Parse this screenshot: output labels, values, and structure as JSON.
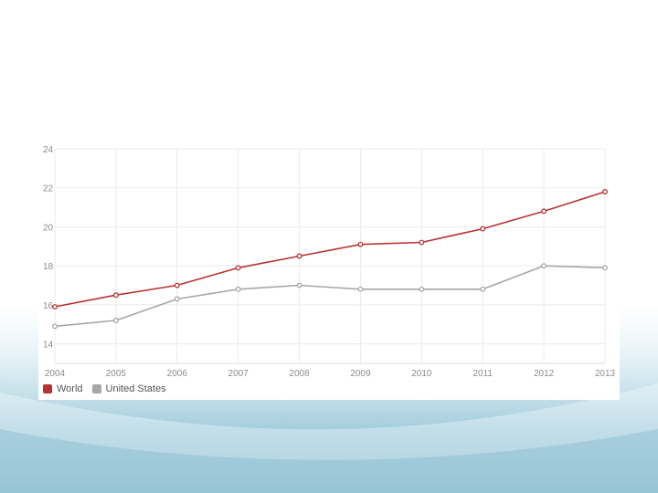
{
  "colors": {
    "world": "#b83232",
    "united_states": "#a6a6a6",
    "grid": "#ebebeb"
  },
  "chart_data": {
    "type": "line",
    "title": "",
    "xlabel": "",
    "ylabel": "",
    "x": [
      "2004",
      "2005",
      "2006",
      "2007",
      "2008",
      "2009",
      "2010",
      "2011",
      "2012",
      "2013"
    ],
    "ylim": [
      13,
      24
    ],
    "yticks": [
      14,
      16,
      18,
      20,
      22,
      24
    ],
    "grid": true,
    "legend_position": "bottom-left",
    "series": [
      {
        "name": "World",
        "color": "#b83232",
        "values": [
          15.9,
          16.5,
          17.0,
          17.9,
          18.5,
          19.1,
          19.2,
          19.9,
          20.8,
          21.8
        ]
      },
      {
        "name": "United States",
        "color": "#a6a6a6",
        "values": [
          14.9,
          15.2,
          16.3,
          16.8,
          17.0,
          16.8,
          16.8,
          16.8,
          18.0,
          17.9
        ]
      }
    ]
  }
}
